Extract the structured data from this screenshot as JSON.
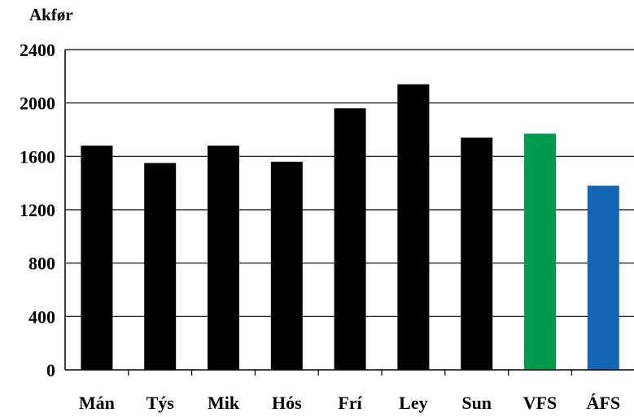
{
  "chart_data": {
    "type": "bar",
    "title": "",
    "ylabel": "Akfør",
    "xlabel": "",
    "categories": [
      "Mán",
      "Týs",
      "Mik",
      "Hós",
      "Frí",
      "Ley",
      "Sun",
      "VFS",
      "ÁFS"
    ],
    "values": [
      1680,
      1550,
      1680,
      1560,
      1960,
      2140,
      1740,
      1770,
      1380
    ],
    "bar_colors": [
      "#000000",
      "#000000",
      "#000000",
      "#000000",
      "#000000",
      "#000000",
      "#000000",
      "#009a4e",
      "#1565b6"
    ],
    "ylim": [
      0,
      2400
    ],
    "yticks": [
      "0",
      "400",
      "800",
      "1200",
      "1600",
      "2000",
      "2400"
    ],
    "ytick_values": [
      0,
      400,
      800,
      1200,
      1600,
      2000,
      2400
    ],
    "grid": true,
    "legend": "none"
  }
}
